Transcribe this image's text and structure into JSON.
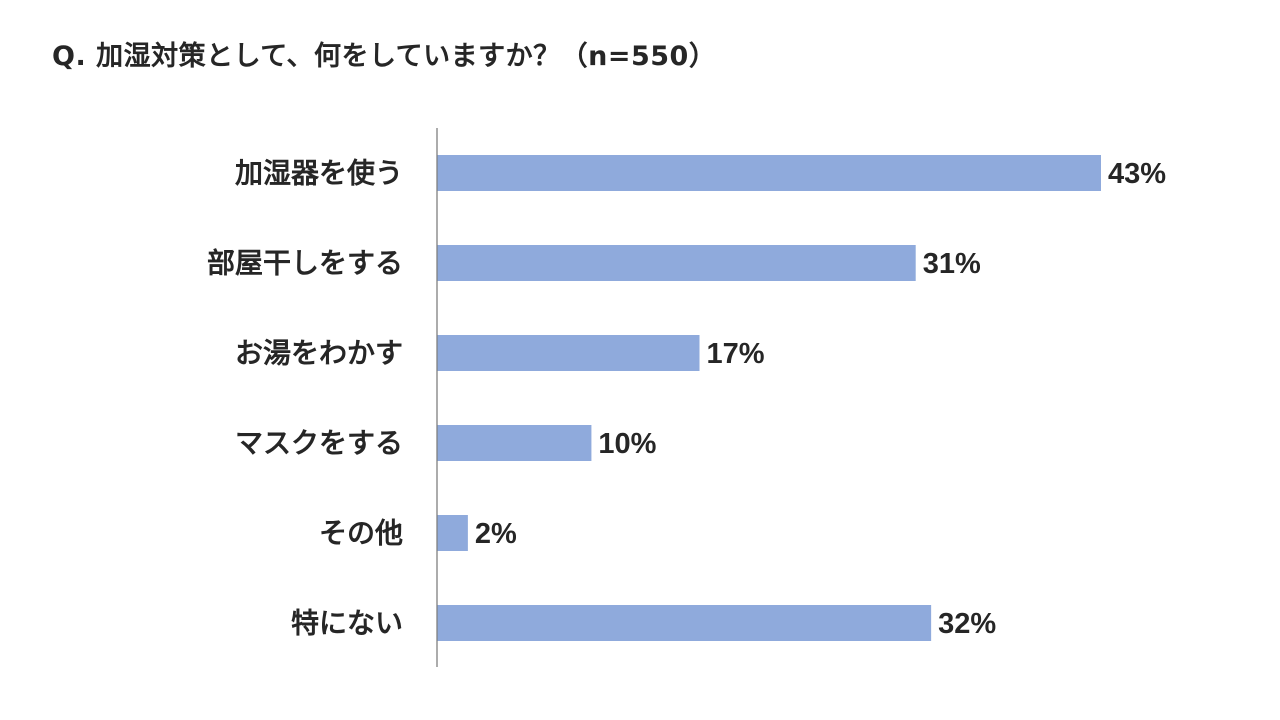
{
  "question": "Q. 加湿対策として、何をしていますか？（n=550）",
  "chart_data": {
    "type": "bar",
    "orientation": "horizontal",
    "title": "Q. 加湿対策として、何をしていますか？（n=550）",
    "categories": [
      "加湿器を使う",
      "部屋干しをする",
      "お湯をわかす",
      "マスクをする",
      "その他",
      "特にない"
    ],
    "values": [
      43,
      31,
      17,
      10,
      2,
      32
    ],
    "value_labels": [
      "43%",
      "31%",
      "17%",
      "10%",
      "2%",
      "32%"
    ],
    "unit": "%",
    "xlim": [
      0,
      43
    ],
    "grid": false,
    "legend": "none",
    "bar_color": "#8faadc",
    "axis_color": "#7f7f7f"
  }
}
